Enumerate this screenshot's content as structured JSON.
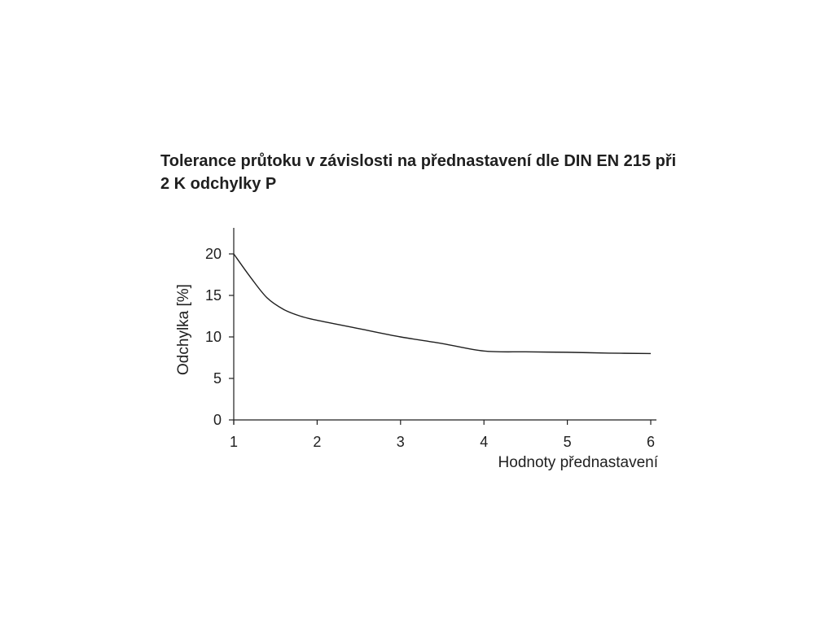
{
  "chart_data": {
    "type": "line",
    "title_lines": [
      "Tolerance průtoku v závislosti na přednastavení dle DIN EN 215 při",
      "2 K odchylky P"
    ],
    "xlabel": "Hodnoty přednastavení",
    "ylabel": "Odchylka [%]",
    "xlim": [
      1,
      6
    ],
    "ylim": [
      0,
      23
    ],
    "x_ticks": [
      1,
      2,
      3,
      4,
      5,
      6
    ],
    "y_ticks": [
      0,
      5,
      10,
      15,
      20
    ],
    "grid": false,
    "legend": "none",
    "line_color": "#1f1f1f",
    "series": [
      {
        "x": [
          1,
          1.2,
          1.4,
          1.6,
          1.8,
          2,
          2.5,
          3,
          3.5,
          4,
          4.5,
          5,
          5.5,
          6
        ],
        "values": [
          20,
          17.2,
          14.7,
          13.3,
          12.5,
          12,
          11,
          10,
          9.2,
          8.3,
          8.2,
          8.15,
          8.05,
          8
        ]
      }
    ]
  }
}
